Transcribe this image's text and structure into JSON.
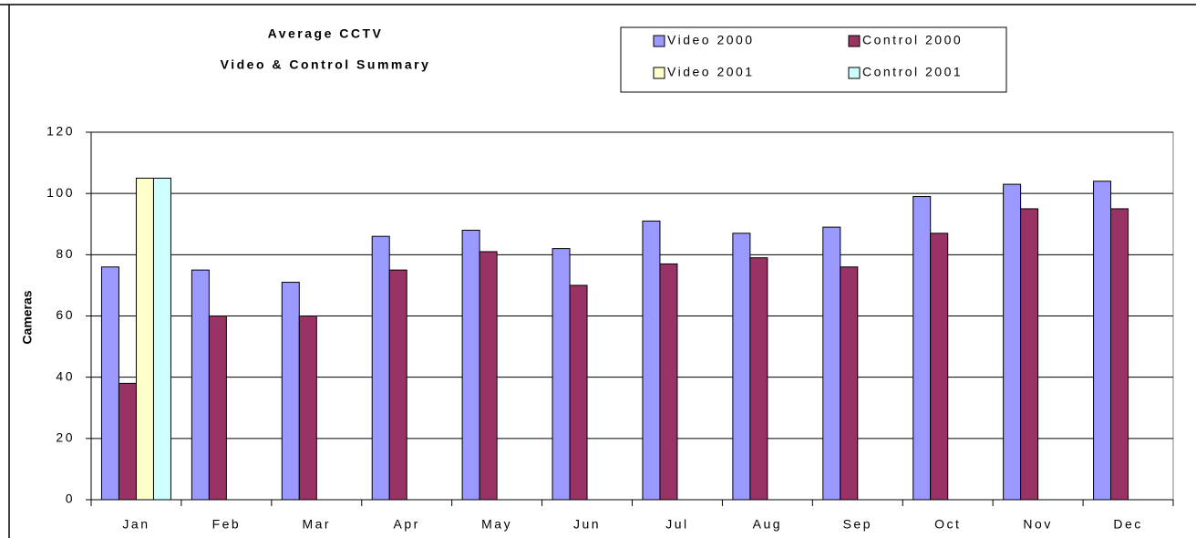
{
  "chart_data": {
    "type": "bar",
    "title": [
      "Average CCTV",
      "Video & Control Summary"
    ],
    "y_label": "Cameras",
    "categories": [
      "Jan",
      "Feb",
      "Mar",
      "Apr",
      "May",
      "Jun",
      "Jul",
      "Aug",
      "Sep",
      "Oct",
      "Nov",
      "Dec"
    ],
    "series": [
      {
        "name": "Video 2000",
        "color": "#9999ff",
        "values": [
          76,
          75,
          71,
          86,
          88,
          82,
          91,
          87,
          89,
          99,
          103,
          104
        ]
      },
      {
        "name": "Control 2000",
        "color": "#993366",
        "values": [
          38,
          60,
          60,
          75,
          81,
          70,
          77,
          79,
          76,
          87,
          95,
          95
        ]
      },
      {
        "name": "Video 2001",
        "color": "#ffffcc",
        "values": [
          105,
          null,
          null,
          null,
          null,
          null,
          null,
          null,
          null,
          null,
          null,
          null
        ]
      },
      {
        "name": "Control 2001",
        "color": "#ccffff",
        "values": [
          105,
          null,
          null,
          null,
          null,
          null,
          null,
          null,
          null,
          null,
          null,
          null
        ]
      }
    ],
    "ylim": [
      0,
      120
    ],
    "yticks": [
      0,
      20,
      40,
      60,
      80,
      100,
      120
    ],
    "grid": true,
    "legend": "top-right"
  }
}
